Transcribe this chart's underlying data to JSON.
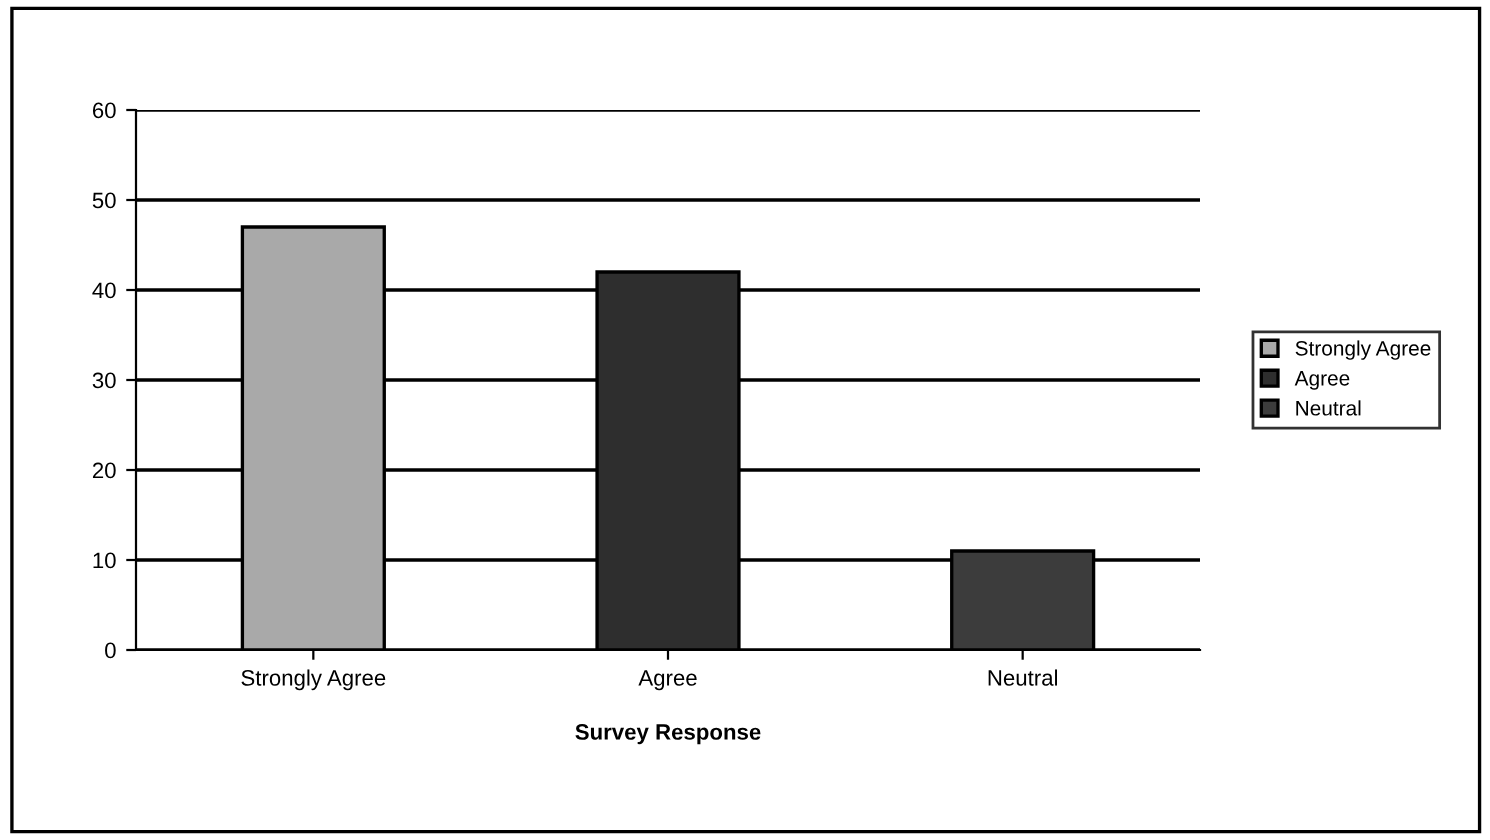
{
  "chart_data": {
    "type": "bar",
    "xlabel": "Survey Response",
    "categories": [
      "Strongly Agree",
      "Agree",
      "Neutral"
    ],
    "series": [
      {
        "name": "Strongly Agree",
        "color": "#a9a9a9",
        "values": [
          47,
          null,
          null
        ]
      },
      {
        "name": "Agree",
        "color": "#2e2e2e",
        "values": [
          null,
          42,
          null
        ]
      },
      {
        "name": "Neutral",
        "color": "#3c3c3c",
        "values": [
          null,
          null,
          11
        ]
      }
    ],
    "ylim": [
      0,
      60
    ],
    "yticks": [
      0,
      10,
      20,
      30,
      40,
      50,
      60
    ],
    "grid": "y",
    "legend": "right"
  }
}
